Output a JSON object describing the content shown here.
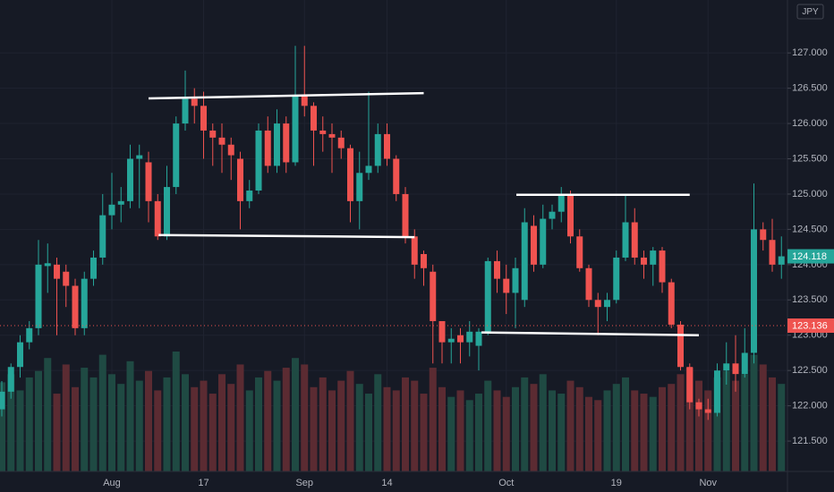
{
  "chart_data": {
    "type": "candlestick",
    "currency": "JPY",
    "categories": [
      null,
      null,
      null,
      null,
      null,
      null,
      null,
      null,
      null,
      null,
      null,
      null,
      "Aug",
      null,
      null,
      null,
      null,
      null,
      null,
      null,
      null,
      null,
      "17",
      null,
      null,
      null,
      null,
      null,
      null,
      null,
      null,
      null,
      null,
      "Sep",
      null,
      null,
      null,
      null,
      null,
      null,
      null,
      null,
      "14",
      null,
      null,
      null,
      null,
      null,
      null,
      null,
      null,
      null,
      null,
      null,
      null,
      "Oct",
      null,
      null,
      null,
      null,
      null,
      null,
      null,
      null,
      null,
      null,
      null,
      "19",
      null,
      null,
      null,
      null,
      null,
      null,
      null,
      null,
      null,
      "Nov",
      null,
      null,
      null,
      null,
      null,
      null,
      null,
      null
    ],
    "open": [
      121.95,
      122.2,
      122.55,
      122.9,
      123.1,
      123.98,
      124.0,
      123.9,
      123.7,
      123.1,
      123.8,
      124.1,
      124.7,
      124.85,
      124.9,
      125.5,
      125.45,
      124.9,
      124.4,
      125.1,
      126.0,
      126.35,
      126.25,
      125.9,
      125.8,
      125.7,
      125.5,
      124.9,
      125.05,
      125.9,
      125.4,
      126.0,
      125.45,
      126.4,
      126.25,
      125.9,
      125.85,
      125.8,
      125.65,
      124.9,
      125.3,
      125.4,
      125.85,
      125.5,
      125.0,
      124.4,
      124.15,
      123.9,
      123.2,
      122.9,
      123.0,
      122.9,
      122.85,
      123.05,
      124.05,
      123.8,
      123.6,
      123.5,
      124.55,
      124.0,
      124.65,
      124.75,
      125.0,
      124.4,
      123.95,
      123.5,
      123.4,
      123.5,
      124.1,
      124.6,
      124.1,
      124.0,
      124.2,
      123.75,
      123.15,
      122.55,
      122.05,
      121.95,
      121.9,
      122.5,
      122.6,
      122.45,
      122.75,
      124.5,
      124.35,
      124.0
    ],
    "high": [
      122.35,
      122.6,
      123.0,
      123.2,
      124.35,
      124.3,
      124.1,
      124.0,
      123.8,
      123.9,
      124.2,
      125.0,
      125.3,
      125.1,
      125.7,
      125.7,
      125.6,
      125.0,
      125.4,
      126.1,
      126.75,
      126.5,
      126.45,
      126.0,
      126.0,
      125.8,
      125.6,
      125.2,
      126.0,
      126.1,
      126.2,
      126.1,
      127.1,
      127.1,
      126.3,
      126.1,
      126.0,
      125.9,
      125.7,
      125.6,
      126.45,
      126.0,
      126.0,
      125.55,
      125.1,
      124.5,
      124.2,
      124.0,
      123.2,
      123.1,
      123.1,
      123.2,
      123.1,
      124.1,
      124.2,
      124.0,
      124.1,
      124.8,
      124.7,
      124.85,
      124.85,
      125.1,
      125.05,
      124.5,
      124.0,
      123.6,
      123.6,
      124.2,
      125.0,
      124.8,
      124.2,
      124.25,
      124.25,
      123.8,
      123.2,
      122.6,
      122.1,
      122.1,
      122.6,
      122.9,
      123.0,
      123.1,
      125.15,
      124.6,
      124.65,
      124.4
    ],
    "low": [
      121.85,
      122.1,
      122.4,
      122.8,
      123.0,
      123.6,
      123.0,
      123.4,
      123.0,
      123.0,
      123.7,
      124.0,
      124.5,
      124.6,
      124.8,
      124.8,
      124.6,
      124.35,
      124.35,
      125.0,
      125.9,
      126.0,
      125.5,
      125.4,
      125.3,
      125.2,
      124.5,
      124.8,
      125.0,
      125.3,
      125.3,
      125.3,
      125.4,
      126.1,
      125.4,
      125.6,
      125.3,
      125.5,
      124.6,
      124.5,
      125.2,
      125.3,
      125.4,
      124.9,
      124.3,
      123.8,
      123.7,
      122.6,
      122.6,
      122.6,
      122.6,
      122.7,
      122.5,
      123.0,
      123.6,
      123.3,
      123.1,
      123.4,
      123.9,
      123.95,
      124.5,
      124.6,
      124.3,
      123.9,
      123.4,
      123.0,
      123.2,
      123.45,
      124.05,
      124.0,
      123.8,
      123.7,
      123.6,
      123.1,
      122.5,
      121.95,
      121.85,
      121.8,
      121.85,
      122.3,
      122.2,
      122.4,
      122.6,
      124.2,
      123.9,
      123.8
    ],
    "close": [
      122.2,
      122.55,
      122.9,
      123.1,
      124.0,
      124.02,
      123.8,
      123.7,
      123.1,
      123.8,
      124.1,
      124.7,
      124.85,
      124.9,
      125.5,
      125.55,
      124.9,
      124.4,
      125.1,
      126.0,
      126.35,
      126.25,
      125.9,
      125.8,
      125.7,
      125.55,
      124.9,
      125.05,
      125.9,
      125.4,
      126.0,
      125.45,
      126.4,
      126.25,
      125.9,
      125.85,
      125.8,
      125.65,
      124.9,
      125.3,
      125.4,
      125.85,
      125.5,
      125.0,
      124.4,
      124.0,
      123.95,
      123.2,
      122.9,
      122.95,
      122.9,
      123.05,
      123.05,
      124.05,
      123.8,
      123.6,
      123.95,
      124.6,
      124.0,
      124.65,
      124.75,
      125.0,
      124.4,
      123.95,
      123.5,
      123.4,
      123.5,
      124.1,
      124.6,
      124.1,
      124.0,
      124.2,
      123.75,
      123.15,
      122.55,
      122.05,
      121.95,
      121.9,
      122.5,
      122.6,
      122.45,
      122.75,
      124.5,
      124.35,
      124.0,
      124.118
    ],
    "volume": [
      55,
      60,
      50,
      58,
      62,
      70,
      48,
      66,
      52,
      64,
      58,
      72,
      60,
      54,
      68,
      56,
      62,
      50,
      58,
      74,
      60,
      52,
      56,
      48,
      60,
      54,
      66,
      50,
      58,
      62,
      56,
      64,
      70,
      66,
      52,
      58,
      50,
      56,
      62,
      54,
      48,
      60,
      52,
      50,
      58,
      56,
      48,
      64,
      52,
      46,
      50,
      44,
      48,
      56,
      50,
      46,
      52,
      58,
      54,
      60,
      50,
      48,
      56,
      52,
      46,
      44,
      50,
      54,
      58,
      50,
      48,
      46,
      52,
      54,
      60,
      64,
      56,
      50,
      58,
      62,
      56,
      60,
      72,
      66,
      58,
      54
    ],
    "volume_lim": [
      0,
      160
    ],
    "up_color": "#26a69a",
    "down_color": "#ef5350",
    "up_volume_color": "#1f4a43",
    "down_volume_color": "#5b2b32",
    "ylim": [
      121.07,
      127.75
    ],
    "yticks": [
      {
        "value": 121.5,
        "label": "121.500"
      },
      {
        "value": 122,
        "label": "122.000"
      },
      {
        "value": 122.5,
        "label": "122.500"
      },
      {
        "value": 123,
        "label": "123.000"
      },
      {
        "value": 123.5,
        "label": "123.500"
      },
      {
        "value": 124,
        "label": "124.000"
      },
      {
        "value": 124.5,
        "label": "124.500"
      },
      {
        "value": 125,
        "label": "125.000"
      },
      {
        "value": 125.5,
        "label": "125.500"
      },
      {
        "value": 126,
        "label": "126.000"
      },
      {
        "value": 126.5,
        "label": "126.500"
      },
      {
        "value": 127,
        "label": "127.000"
      }
    ],
    "reference_line": {
      "value": 123.136,
      "color": "#ef5350"
    },
    "grid": true,
    "drawings": [
      {
        "x": [
          16,
          46
        ],
        "y": [
          126.355,
          126.43
        ]
      },
      {
        "x": [
          17.1,
          45
        ],
        "y": [
          124.42,
          124.39
        ]
      },
      {
        "x": [
          56.1,
          75
        ],
        "y": [
          124.99,
          124.99
        ]
      },
      {
        "x": [
          52.3,
          76
        ],
        "y": [
          123.04,
          123.0
        ]
      }
    ]
  }
}
